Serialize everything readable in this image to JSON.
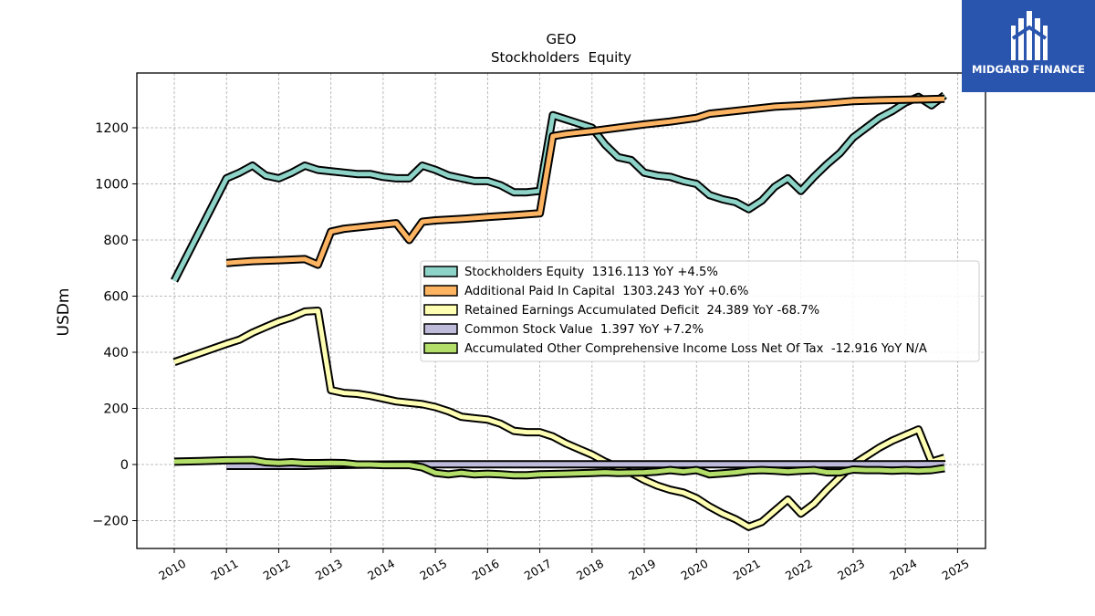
{
  "brand": {
    "name": "MIDGARD FINANCE",
    "logo_icon": "midgard-logo-icon",
    "background_color": "#2a55ae"
  },
  "chart_data": {
    "type": "line",
    "title": "GEO",
    "subtitle": "Stockholders  Equity",
    "xlabel": "",
    "ylabel": "USDm",
    "xlim": [
      2009.7,
      2025.5
    ],
    "ylim": [
      -300,
      1390
    ],
    "x_ticks": [
      2010,
      2011,
      2012,
      2013,
      2014,
      2015,
      2016,
      2017,
      2018,
      2019,
      2020,
      2021,
      2022,
      2023,
      2024,
      2025
    ],
    "x_tick_labels": [
      "2010",
      "2011",
      "2012",
      "2013",
      "2014",
      "2015",
      "2016",
      "2017",
      "2018",
      "2019",
      "2020",
      "2021",
      "2022",
      "2023",
      "2024",
      "2025"
    ],
    "y_ticks": [
      -200,
      0,
      200,
      400,
      600,
      800,
      1000,
      1200
    ],
    "y_tick_labels": [
      "−200",
      "0",
      "200",
      "400",
      "600",
      "800",
      "1000",
      "1200"
    ],
    "grid": true,
    "legend_position": "center-right",
    "series": [
      {
        "name": "Stockholders Equity",
        "legend_label": "Stockholders Equity  1316.113 YoY +4.5%",
        "color": "#8dd3c7",
        "points": [
          [
            2010.0,
            655
          ],
          [
            2011.0,
            1020
          ],
          [
            2011.25,
            1040
          ],
          [
            2011.5,
            1065
          ],
          [
            2011.75,
            1030
          ],
          [
            2012.0,
            1020
          ],
          [
            2012.25,
            1040
          ],
          [
            2012.5,
            1065
          ],
          [
            2012.75,
            1050
          ],
          [
            2013.0,
            1045
          ],
          [
            2013.25,
            1040
          ],
          [
            2013.5,
            1035
          ],
          [
            2013.75,
            1035
          ],
          [
            2014.0,
            1025
          ],
          [
            2014.25,
            1020
          ],
          [
            2014.5,
            1020
          ],
          [
            2014.75,
            1065
          ],
          [
            2015.0,
            1050
          ],
          [
            2015.25,
            1030
          ],
          [
            2015.5,
            1020
          ],
          [
            2015.75,
            1010
          ],
          [
            2016.0,
            1010
          ],
          [
            2016.25,
            995
          ],
          [
            2016.5,
            970
          ],
          [
            2016.75,
            970
          ],
          [
            2017.0,
            975
          ],
          [
            2017.25,
            1245
          ],
          [
            2017.5,
            1230
          ],
          [
            2017.75,
            1215
          ],
          [
            2018.0,
            1200
          ],
          [
            2018.25,
            1140
          ],
          [
            2018.5,
            1095
          ],
          [
            2018.75,
            1085
          ],
          [
            2019.0,
            1040
          ],
          [
            2019.25,
            1030
          ],
          [
            2019.5,
            1025
          ],
          [
            2019.75,
            1010
          ],
          [
            2020.0,
            1000
          ],
          [
            2020.25,
            960
          ],
          [
            2020.5,
            945
          ],
          [
            2020.75,
            935
          ],
          [
            2021.0,
            910
          ],
          [
            2021.25,
            940
          ],
          [
            2021.5,
            990
          ],
          [
            2021.75,
            1020
          ],
          [
            2022.0,
            975
          ],
          [
            2022.25,
            1025
          ],
          [
            2022.5,
            1070
          ],
          [
            2022.75,
            1110
          ],
          [
            2023.0,
            1165
          ],
          [
            2023.25,
            1200
          ],
          [
            2023.5,
            1235
          ],
          [
            2023.75,
            1260
          ],
          [
            2024.0,
            1290
          ],
          [
            2024.25,
            1310
          ],
          [
            2024.5,
            1280
          ],
          [
            2024.75,
            1316
          ]
        ]
      },
      {
        "name": "Additional Paid In Capital",
        "legend_label": "Additional Paid In Capital  1303.243 YoY +0.6%",
        "color": "#fdb462",
        "points": [
          [
            2011.0,
            718
          ],
          [
            2011.5,
            725
          ],
          [
            2012.0,
            728
          ],
          [
            2012.5,
            732
          ],
          [
            2012.75,
            712
          ],
          [
            2013.0,
            830
          ],
          [
            2013.25,
            840
          ],
          [
            2013.5,
            845
          ],
          [
            2013.75,
            850
          ],
          [
            2014.0,
            855
          ],
          [
            2014.25,
            860
          ],
          [
            2014.5,
            800
          ],
          [
            2014.75,
            865
          ],
          [
            2015.0,
            870
          ],
          [
            2015.5,
            875
          ],
          [
            2016.0,
            882
          ],
          [
            2016.5,
            888
          ],
          [
            2017.0,
            895
          ],
          [
            2017.25,
            1170
          ],
          [
            2017.5,
            1178
          ],
          [
            2017.75,
            1183
          ],
          [
            2018.0,
            1188
          ],
          [
            2018.5,
            1200
          ],
          [
            2019.0,
            1212
          ],
          [
            2019.5,
            1222
          ],
          [
            2020.0,
            1235
          ],
          [
            2020.25,
            1250
          ],
          [
            2020.5,
            1255
          ],
          [
            2021.0,
            1265
          ],
          [
            2021.5,
            1275
          ],
          [
            2022.0,
            1280
          ],
          [
            2022.5,
            1287
          ],
          [
            2023.0,
            1295
          ],
          [
            2023.5,
            1298
          ],
          [
            2024.0,
            1300
          ],
          [
            2024.5,
            1302
          ],
          [
            2024.75,
            1303
          ]
        ]
      },
      {
        "name": "Retained Earnings Accumulated Deficit",
        "legend_label": "Retained Earnings Accumulated Deficit  24.389 YoY -68.7%",
        "color": "#ffffb3",
        "points": [
          [
            2010.0,
            365
          ],
          [
            2011.0,
            430
          ],
          [
            2011.25,
            445
          ],
          [
            2011.5,
            470
          ],
          [
            2011.75,
            490
          ],
          [
            2012.0,
            510
          ],
          [
            2012.25,
            525
          ],
          [
            2012.5,
            545
          ],
          [
            2012.75,
            548
          ],
          [
            2013.0,
            265
          ],
          [
            2013.25,
            255
          ],
          [
            2013.5,
            252
          ],
          [
            2013.75,
            245
          ],
          [
            2014.0,
            235
          ],
          [
            2014.25,
            225
          ],
          [
            2014.5,
            220
          ],
          [
            2014.75,
            215
          ],
          [
            2015.0,
            205
          ],
          [
            2015.25,
            190
          ],
          [
            2015.5,
            170
          ],
          [
            2015.75,
            165
          ],
          [
            2016.0,
            160
          ],
          [
            2016.25,
            145
          ],
          [
            2016.5,
            120
          ],
          [
            2016.75,
            115
          ],
          [
            2017.0,
            115
          ],
          [
            2017.25,
            100
          ],
          [
            2017.5,
            75
          ],
          [
            2017.75,
            55
          ],
          [
            2018.0,
            35
          ],
          [
            2018.25,
            10
          ],
          [
            2018.5,
            -10
          ],
          [
            2018.75,
            -30
          ],
          [
            2019.0,
            -55
          ],
          [
            2019.25,
            -75
          ],
          [
            2019.5,
            -90
          ],
          [
            2019.75,
            -100
          ],
          [
            2020.0,
            -120
          ],
          [
            2020.25,
            -150
          ],
          [
            2020.5,
            -175
          ],
          [
            2020.75,
            -195
          ],
          [
            2021.0,
            -222
          ],
          [
            2021.25,
            -205
          ],
          [
            2021.5,
            -165
          ],
          [
            2021.75,
            -125
          ],
          [
            2022.0,
            -175
          ],
          [
            2022.25,
            -140
          ],
          [
            2022.5,
            -90
          ],
          [
            2022.75,
            -45
          ],
          [
            2023.0,
            0
          ],
          [
            2023.25,
            30
          ],
          [
            2023.5,
            60
          ],
          [
            2023.75,
            85
          ],
          [
            2024.0,
            105
          ],
          [
            2024.25,
            125
          ],
          [
            2024.5,
            10
          ],
          [
            2024.75,
            24
          ]
        ]
      },
      {
        "name": "Common Stock Value",
        "legend_label": "Common Stock Value  1.397 YoY +7.2%",
        "color": "#bebada",
        "points": [
          [
            2011.0,
            -5
          ],
          [
            2011.5,
            -5
          ],
          [
            2012.0,
            -5
          ],
          [
            2012.5,
            -5
          ],
          [
            2013.0,
            -2
          ],
          [
            2014.0,
            0
          ],
          [
            2015.0,
            1
          ],
          [
            2016.0,
            1
          ],
          [
            2017.0,
            1
          ],
          [
            2018.0,
            1
          ],
          [
            2019.0,
            1
          ],
          [
            2020.0,
            1
          ],
          [
            2021.0,
            1
          ],
          [
            2022.0,
            1
          ],
          [
            2023.0,
            1
          ],
          [
            2024.0,
            1
          ],
          [
            2024.75,
            1.4
          ]
        ]
      },
      {
        "name": "Accumulated Other Comprehensive Income Loss Net Of Tax",
        "legend_label": "Accumulated Other Comprehensive Income Loss Net Of Tax  -12.916 YoY N/A",
        "color": "#b3de69",
        "points": [
          [
            2010.0,
            10
          ],
          [
            2010.5,
            12
          ],
          [
            2011.0,
            15
          ],
          [
            2011.5,
            16
          ],
          [
            2011.75,
            8
          ],
          [
            2012.0,
            6
          ],
          [
            2012.25,
            8
          ],
          [
            2012.5,
            5
          ],
          [
            2012.75,
            5
          ],
          [
            2013.0,
            6
          ],
          [
            2013.25,
            5
          ],
          [
            2013.5,
            0
          ],
          [
            2013.75,
            0
          ],
          [
            2014.0,
            -2
          ],
          [
            2014.25,
            -2
          ],
          [
            2014.5,
            -2
          ],
          [
            2014.75,
            -10
          ],
          [
            2015.0,
            -30
          ],
          [
            2015.25,
            -35
          ],
          [
            2015.5,
            -30
          ],
          [
            2015.75,
            -35
          ],
          [
            2016.0,
            -33
          ],
          [
            2016.25,
            -35
          ],
          [
            2016.5,
            -38
          ],
          [
            2016.75,
            -38
          ],
          [
            2017.0,
            -35
          ],
          [
            2017.5,
            -33
          ],
          [
            2018.0,
            -30
          ],
          [
            2018.25,
            -28
          ],
          [
            2018.5,
            -30
          ],
          [
            2019.0,
            -28
          ],
          [
            2019.25,
            -25
          ],
          [
            2019.5,
            -20
          ],
          [
            2019.75,
            -25
          ],
          [
            2020.0,
            -20
          ],
          [
            2020.25,
            -35
          ],
          [
            2020.5,
            -32
          ],
          [
            2020.75,
            -28
          ],
          [
            2021.0,
            -22
          ],
          [
            2021.25,
            -20
          ],
          [
            2021.5,
            -22
          ],
          [
            2021.75,
            -25
          ],
          [
            2022.0,
            -22
          ],
          [
            2022.25,
            -20
          ],
          [
            2022.5,
            -28
          ],
          [
            2022.75,
            -28
          ],
          [
            2023.0,
            -18
          ],
          [
            2023.25,
            -20
          ],
          [
            2023.5,
            -20
          ],
          [
            2023.75,
            -22
          ],
          [
            2024.0,
            -20
          ],
          [
            2024.25,
            -22
          ],
          [
            2024.5,
            -20
          ],
          [
            2024.75,
            -13
          ]
        ]
      }
    ]
  }
}
